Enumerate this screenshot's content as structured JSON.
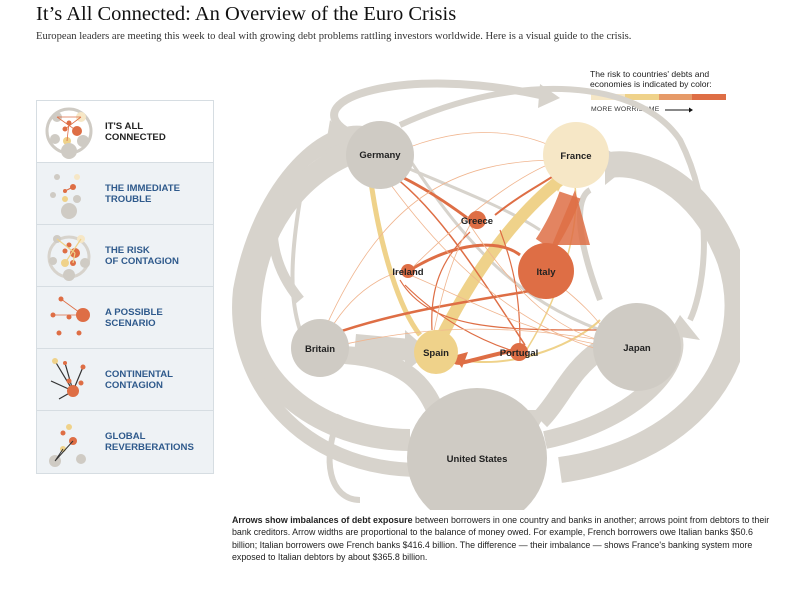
{
  "header": {
    "title": "It’s All Connected: An Overview of the Euro Crisis",
    "subtitle": "European leaders are meeting this week to deal with growing debt problems rattling investors worldwide. Here is a visual guide to the crisis."
  },
  "sidebar": {
    "items": [
      {
        "label": "IT'S ALL\nCONNECTED",
        "active": true
      },
      {
        "label": "THE IMMEDIATE\nTROUBLE",
        "active": false
      },
      {
        "label": "THE RISK\nOF CONTAGION",
        "active": false
      },
      {
        "label": "A POSSIBLE\nSCENARIO",
        "active": false
      },
      {
        "label": "CONTINENTAL\nCONTAGION",
        "active": false
      },
      {
        "label": "GLOBAL\nREVERBERATIONS",
        "active": false
      }
    ]
  },
  "legend": {
    "text": "The risk to countries' debts and\neconomies is indicated by color:",
    "more_label": "MORE WORRISOME"
  },
  "nodes": {
    "germany": "Germany",
    "france": "France",
    "greece": "Greece",
    "ireland": "Ireland",
    "italy": "Italy",
    "britain": "Britain",
    "spain": "Spain",
    "portugal": "Portugal",
    "japan": "Japan",
    "united_states": "United States"
  },
  "colors": {
    "neutral": "#cfcbc4",
    "neutral_arrow": "#d7d3cc",
    "low_risk": "#f6e7c6",
    "medium_risk": "#efd28a",
    "high_risk": "#de6e45",
    "link_blue": "#2f5a8c"
  },
  "caption": {
    "bold": "Arrows show imbalances of debt exposure",
    "rest": " between borrowers in one country and banks in another; arrows point from debtors to their bank creditors. Arrow widths are proportional to the balance of money owed. For example, French borrowers owe Italian banks $50.6 billion; Italian borrowers owe French banks $416.4 billion. The difference — their imbalance — shows France's banking system more exposed to Italian debtors by about $365.8 billion."
  }
}
